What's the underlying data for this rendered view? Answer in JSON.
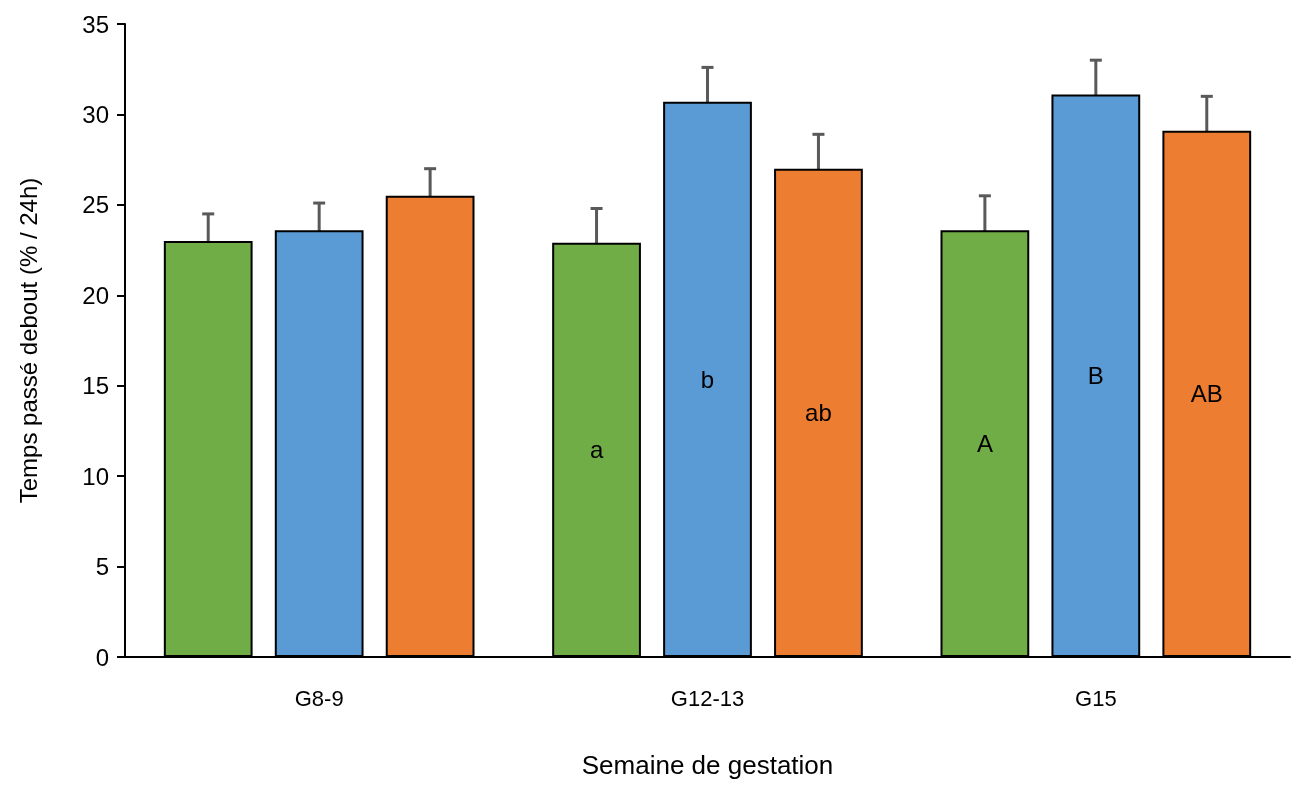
{
  "chart_data": {
    "type": "bar",
    "xlabel": "Semaine de gestation",
    "ylabel": "Temps passé debout (% / 24h)",
    "categories": [
      "G8-9",
      "G12-13",
      "G15"
    ],
    "series": [
      {
        "color": "#70ad47",
        "values": [
          23.0,
          22.9,
          23.6
        ],
        "errors": [
          1.5,
          1.9,
          1.9
        ],
        "value_labels": [
          null,
          "a",
          "A"
        ]
      },
      {
        "color": "#5b9bd5",
        "values": [
          23.6,
          30.7,
          31.1
        ],
        "errors": [
          1.5,
          1.9,
          1.9
        ],
        "value_labels": [
          null,
          "b",
          "B"
        ]
      },
      {
        "color": "#ed7d31",
        "values": [
          25.5,
          27.0,
          29.1
        ],
        "errors": [
          1.5,
          1.9,
          1.9
        ],
        "value_labels": [
          null,
          "ab",
          "AB"
        ]
      }
    ],
    "ylim": [
      0,
      35
    ],
    "yticks": [
      0,
      5,
      10,
      15,
      20,
      25,
      30,
      35
    ],
    "grid": false
  }
}
